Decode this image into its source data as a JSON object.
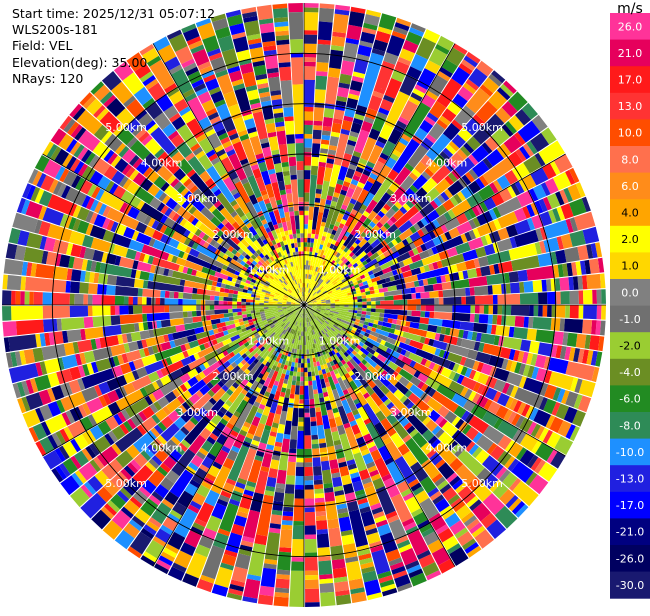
{
  "info": {
    "start_time": "Start time: 2025/12/31 05:07:12",
    "station": "WLS200s-181",
    "field": "Field: VEL",
    "elevation": "Elevation(deg): 35.00",
    "nrays": "NRays: 120"
  },
  "colorbar": {
    "unit": "m/s",
    "levels": [
      {
        "label": "26.0",
        "color": "#ff3399"
      },
      {
        "label": "21.0",
        "color": "#e6005c"
      },
      {
        "label": "17.0",
        "color": "#ff1a1a"
      },
      {
        "label": "13.0",
        "color": "#ff3333"
      },
      {
        "label": "10.0",
        "color": "#ff4d00"
      },
      {
        "label": "8.0",
        "color": "#ff704d"
      },
      {
        "label": "6.0",
        "color": "#ff8c1a"
      },
      {
        "label": "4.0",
        "color": "#ffa500"
      },
      {
        "label": "2.0",
        "color": "#ffff00"
      },
      {
        "label": "1.0",
        "color": "#ffd700"
      },
      {
        "label": "0.0",
        "color": "#808080"
      },
      {
        "label": "-1.0",
        "color": "#707070"
      },
      {
        "label": "-2.0",
        "color": "#9acd32"
      },
      {
        "label": "-4.0",
        "color": "#6b8e23"
      },
      {
        "label": "-6.0",
        "color": "#228b22"
      },
      {
        "label": "-8.0",
        "color": "#2e8b57"
      },
      {
        "label": "-10.0",
        "color": "#1e90ff"
      },
      {
        "label": "-13.0",
        "color": "#2020e0"
      },
      {
        "label": "-17.0",
        "color": "#0000ff"
      },
      {
        "label": "-21.0",
        "color": "#000080"
      },
      {
        "label": "-26.0",
        "color": "#000060"
      },
      {
        "label": "-30.0",
        "color": "#191970"
      }
    ]
  },
  "chart_data": {
    "type": "heatmap",
    "subtype": "ppi-polar",
    "field": "VEL",
    "units": "m/s",
    "nrays": 120,
    "max_range_km": 6.0,
    "range_ring_labels": [
      "1.00km",
      "2.00km",
      "3.00km",
      "4.00km",
      "5.00km"
    ],
    "range_rings_km": [
      1,
      2,
      3,
      4,
      5
    ],
    "near_field": {
      "range_km": [
        0,
        1.0
      ],
      "north_half_dominant_level": "2.0",
      "south_half_dominant_level": "-2.0"
    },
    "far_field": "noise, all color levels mixed",
    "grid": true
  }
}
